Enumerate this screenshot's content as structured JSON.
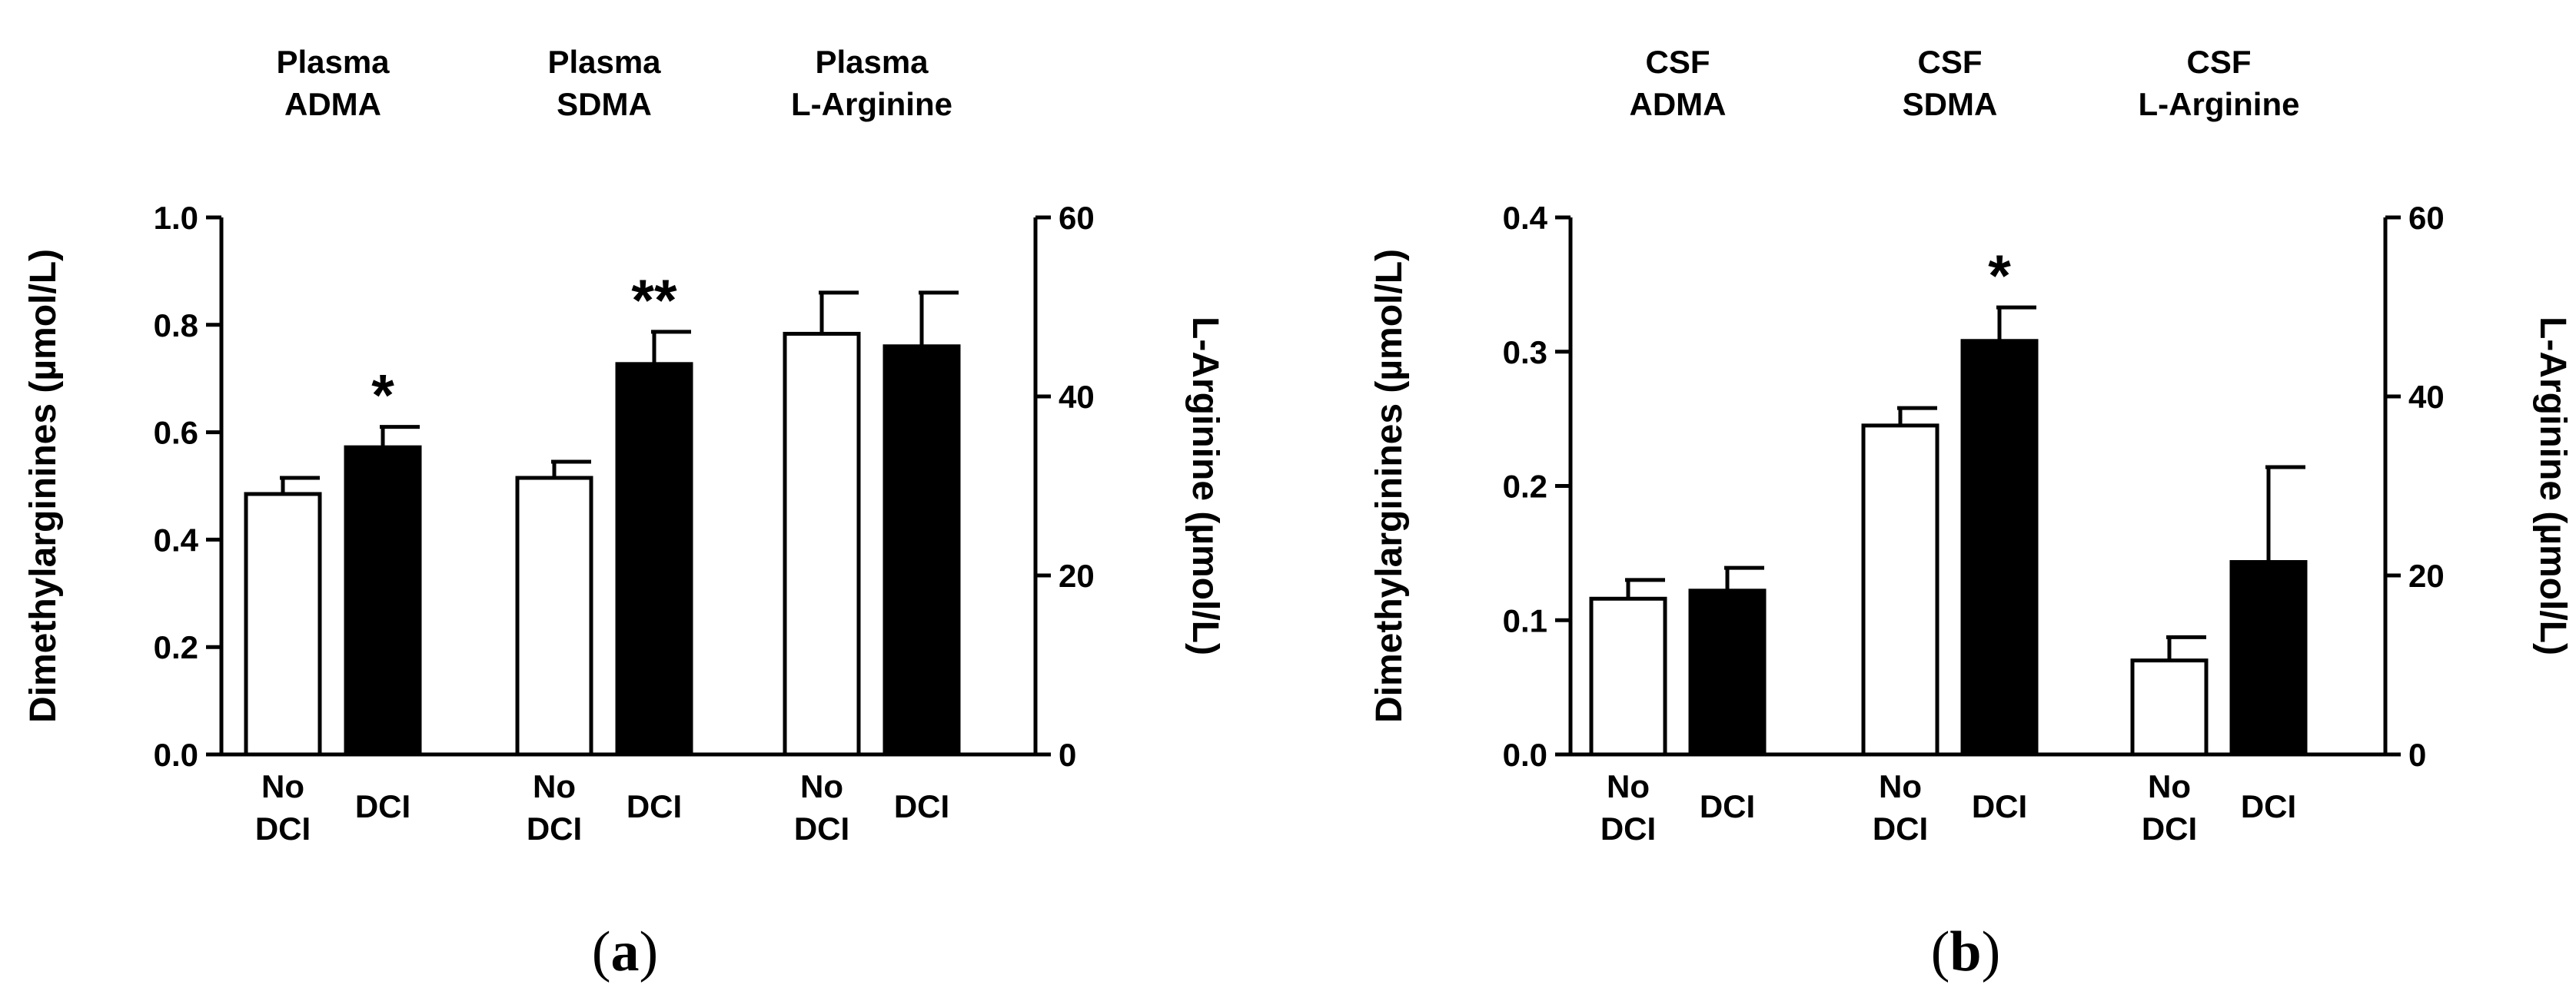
{
  "panels": {
    "a": {
      "caption_open": "(",
      "caption_letter": "a",
      "caption_close": ")"
    },
    "b": {
      "caption_open": "(",
      "caption_letter": "b",
      "caption_close": ")"
    }
  },
  "chart_data": [
    {
      "type": "bar",
      "panel": "a",
      "ylabel": "Dimethylarginines (µmol/L)",
      "ylabel_right": "L-Arginine (µmol/L)",
      "ylim": [
        0,
        1.0
      ],
      "yticks": [
        "0.0",
        "0.2",
        "0.4",
        "0.6",
        "0.8",
        "1.0"
      ],
      "ylim_right": [
        0,
        60
      ],
      "yticks_right": [
        "0",
        "20",
        "40",
        "60"
      ],
      "groups": [
        {
          "title_line1": "Plasma",
          "title_line2": "ADMA",
          "axis": "left",
          "bars": [
            {
              "label_line1": "No",
              "label_line2": "DCI",
              "value": 0.485,
              "error": 0.03,
              "fill": "white",
              "sig": ""
            },
            {
              "label_line1": "DCI",
              "label_line2": "",
              "value": 0.572,
              "error": 0.038,
              "fill": "black",
              "sig": "*"
            }
          ]
        },
        {
          "title_line1": "Plasma",
          "title_line2": "SDMA",
          "axis": "left",
          "bars": [
            {
              "label_line1": "No",
              "label_line2": "DCI",
              "value": 0.515,
              "error": 0.03,
              "fill": "white",
              "sig": ""
            },
            {
              "label_line1": "DCI",
              "label_line2": "",
              "value": 0.727,
              "error": 0.06,
              "fill": "black",
              "sig": "**"
            }
          ]
        },
        {
          "title_line1": "Plasma",
          "title_line2": "L-Arginine",
          "axis": "right",
          "bars": [
            {
              "label_line1": "No",
              "label_line2": "DCI",
              "value": 47,
              "error": 4.6,
              "fill": "white",
              "sig": ""
            },
            {
              "label_line1": "DCI",
              "label_line2": "",
              "value": 45.6,
              "error": 6,
              "fill": "black",
              "sig": ""
            }
          ]
        }
      ]
    },
    {
      "type": "bar",
      "panel": "b",
      "ylabel": "Dimethylarginines (µmol/L)",
      "ylabel_right": "L-Arginine (µmol/L)",
      "ylim": [
        0,
        0.4
      ],
      "yticks": [
        "0.0",
        "0.1",
        "0.2",
        "0.3",
        "0.4"
      ],
      "ylim_right": [
        0,
        60
      ],
      "yticks_right": [
        "0",
        "20",
        "40",
        "60"
      ],
      "groups": [
        {
          "title_line1": "CSF",
          "title_line2": "ADMA",
          "axis": "left",
          "bars": [
            {
              "label_line1": "No",
              "label_line2": "DCI",
              "value": 0.116,
              "error": 0.014,
              "fill": "white",
              "sig": ""
            },
            {
              "label_line1": "DCI",
              "label_line2": "",
              "value": 0.122,
              "error": 0.017,
              "fill": "black",
              "sig": ""
            }
          ]
        },
        {
          "title_line1": "CSF",
          "title_line2": "SDMA",
          "axis": "left",
          "bars": [
            {
              "label_line1": "No",
              "label_line2": "DCI",
              "value": 0.245,
              "error": 0.013,
              "fill": "white",
              "sig": ""
            },
            {
              "label_line1": "DCI",
              "label_line2": "",
              "value": 0.308,
              "error": 0.025,
              "fill": "black",
              "sig": "*"
            }
          ]
        },
        {
          "title_line1": "CSF",
          "title_line2": "L-Arginine",
          "axis": "right",
          "bars": [
            {
              "label_line1": "No",
              "label_line2": "DCI",
              "value": 10.5,
              "error": 2.6,
              "fill": "white",
              "sig": ""
            },
            {
              "label_line1": "DCI",
              "label_line2": "",
              "value": 21.5,
              "error": 10.6,
              "fill": "black",
              "sig": ""
            }
          ]
        }
      ]
    }
  ]
}
